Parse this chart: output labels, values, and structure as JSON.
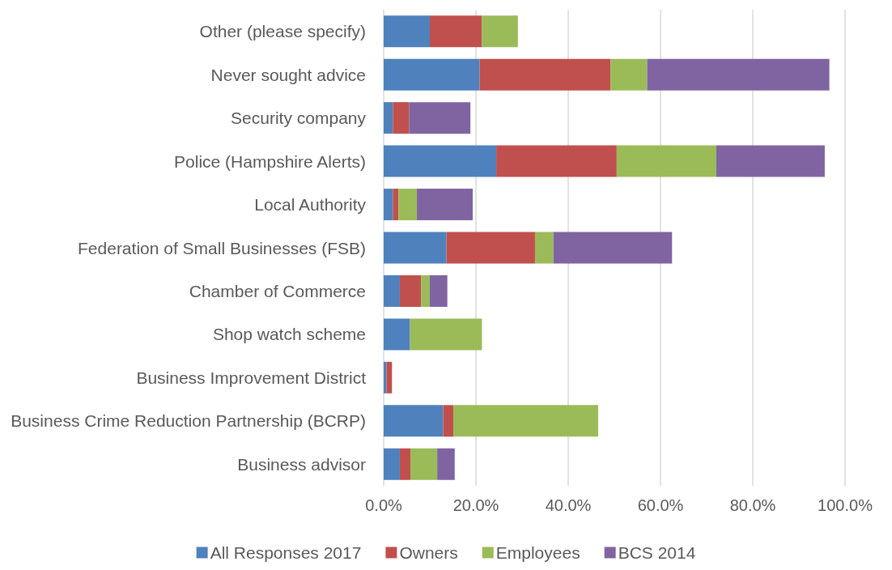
{
  "chart_data": {
    "type": "bar",
    "orientation": "horizontal",
    "stacked": true,
    "categories": [
      "Other (please specify)",
      "Never sought advice",
      "Security company",
      "Police (Hampshire Alerts)",
      "Local Authority",
      "Federation of Small Businesses (FSB)",
      "Chamber of Commerce",
      "Shop watch scheme",
      "Business Improvement District",
      "Business Crime Reduction Partnership (BCRP)",
      "Business advisor"
    ],
    "series": [
      {
        "name": "All Responses 2017",
        "color": "#4f81bd",
        "values": [
          10.0,
          20.8,
          2.0,
          24.4,
          2.0,
          13.6,
          3.5,
          5.7,
          0.6,
          12.9,
          3.5
        ]
      },
      {
        "name": "Owners",
        "color": "#c0504d",
        "values": [
          11.3,
          28.4,
          3.5,
          26.1,
          1.2,
          19.2,
          4.6,
          null,
          1.2,
          2.2,
          2.3
        ]
      },
      {
        "name": "Employees",
        "color": "#9bbb59",
        "values": [
          7.8,
          7.9,
          null,
          21.6,
          4.0,
          4.0,
          1.9,
          15.6,
          null,
          31.4,
          5.8
        ]
      },
      {
        "name": "BCS 2014",
        "color": "#8064a2",
        "values": [
          null,
          39.5,
          13.3,
          23.5,
          12.1,
          25.7,
          3.8,
          null,
          null,
          null,
          3.8
        ]
      }
    ],
    "xlim": [
      0,
      100
    ],
    "xticks": [
      {
        "value": 0,
        "label": "0.0%"
      },
      {
        "value": 20,
        "label": "20.0%"
      },
      {
        "value": 40,
        "label": "40.0%"
      },
      {
        "value": 60,
        "label": "60.0%"
      },
      {
        "value": 80,
        "label": "80.0%"
      },
      {
        "value": 100,
        "label": "100.0%"
      }
    ],
    "grid": "x",
    "legend": "bottom"
  }
}
